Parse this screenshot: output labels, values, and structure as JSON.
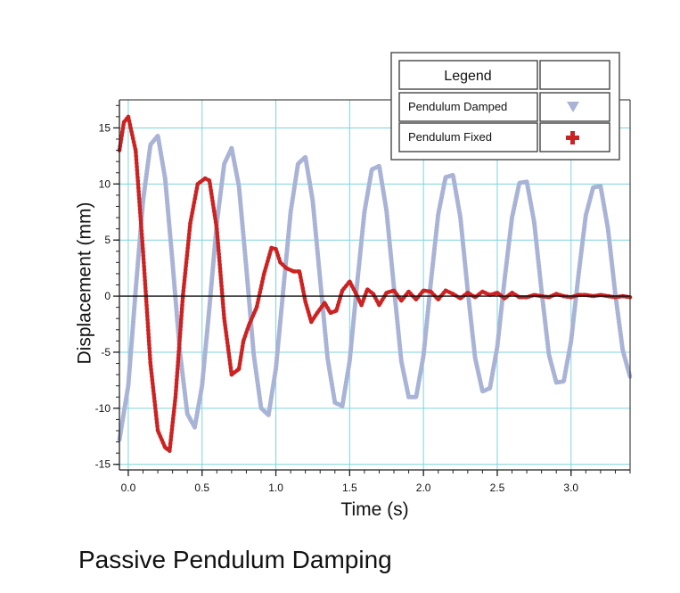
{
  "chart_data": {
    "type": "line",
    "title": "",
    "caption": "Passive Pendulum Damping",
    "xlabel": "Time (s)",
    "ylabel": "Displacement (mm)",
    "xlim": [
      -0.06,
      3.4
    ],
    "ylim": [
      -15.5,
      17.5
    ],
    "x_ticks": [
      0.0,
      0.5,
      1.0,
      1.5,
      2.0,
      2.5,
      3.0
    ],
    "x_tick_labels": [
      "0.0",
      "0.5",
      "1.0",
      "1.5",
      "2.0",
      "2.5",
      "3.0"
    ],
    "y_ticks": [
      -15,
      -10,
      -5,
      0,
      5,
      10,
      15
    ],
    "y_tick_labels": [
      "-15",
      "-10",
      "-5",
      "0",
      "5",
      "10",
      "15"
    ],
    "grid": true,
    "legend": {
      "title": "Legend",
      "placement": "top-right",
      "entries": [
        {
          "label": "Pendulum Damped",
          "marker": "triangle-down",
          "color": "#a9b3d6"
        },
        {
          "label": "Pendulum Fixed",
          "marker": "plus",
          "color": "#cc2222"
        }
      ]
    },
    "series": [
      {
        "name": "Pendulum Damped",
        "color": "#a9b3d6",
        "x": [
          -0.06,
          0.0,
          0.05,
          0.1,
          0.15,
          0.2,
          0.25,
          0.3,
          0.35,
          0.4,
          0.45,
          0.5,
          0.55,
          0.6,
          0.65,
          0.7,
          0.75,
          0.8,
          0.85,
          0.9,
          0.95,
          1.0,
          1.05,
          1.1,
          1.15,
          1.2,
          1.25,
          1.3,
          1.35,
          1.4,
          1.45,
          1.5,
          1.55,
          1.6,
          1.65,
          1.7,
          1.75,
          1.8,
          1.85,
          1.9,
          1.95,
          2.0,
          2.05,
          2.1,
          2.15,
          2.2,
          2.25,
          2.3,
          2.35,
          2.4,
          2.45,
          2.5,
          2.55,
          2.6,
          2.65,
          2.7,
          2.75,
          2.8,
          2.85,
          2.9,
          2.95,
          3.0,
          3.05,
          3.1,
          3.15,
          3.2,
          3.25,
          3.3,
          3.35,
          3.4
        ],
        "y": [
          -12.8,
          -8.0,
          0.5,
          8.5,
          13.5,
          14.3,
          10.5,
          3.0,
          -5.0,
          -10.5,
          -11.7,
          -8.0,
          -1.0,
          6.5,
          11.8,
          13.2,
          9.8,
          2.5,
          -5.2,
          -10.0,
          -10.6,
          -6.5,
          0.5,
          7.5,
          11.8,
          12.4,
          8.5,
          1.5,
          -5.5,
          -9.5,
          -9.8,
          -5.8,
          1.0,
          7.5,
          11.3,
          11.6,
          7.6,
          0.8,
          -5.8,
          -9.0,
          -9.0,
          -5.3,
          1.2,
          7.3,
          10.6,
          10.8,
          7.0,
          0.5,
          -5.5,
          -8.5,
          -8.2,
          -4.5,
          1.5,
          7.0,
          10.1,
          10.2,
          6.6,
          0.5,
          -5.2,
          -7.7,
          -7.6,
          -4.0,
          1.8,
          7.2,
          9.7,
          9.8,
          6.0,
          0.2,
          -4.8,
          -7.2
        ]
      },
      {
        "name": "Pendulum Fixed",
        "color": "#cc2222",
        "x": [
          -0.06,
          -0.03,
          0.0,
          0.05,
          0.1,
          0.15,
          0.2,
          0.25,
          0.28,
          0.32,
          0.37,
          0.42,
          0.47,
          0.52,
          0.55,
          0.6,
          0.65,
          0.7,
          0.75,
          0.78,
          0.82,
          0.87,
          0.92,
          0.97,
          1.0,
          1.03,
          1.07,
          1.12,
          1.16,
          1.2,
          1.24,
          1.28,
          1.33,
          1.37,
          1.41,
          1.45,
          1.5,
          1.54,
          1.58,
          1.62,
          1.66,
          1.7,
          1.75,
          1.8,
          1.85,
          1.9,
          1.95,
          2.0,
          2.05,
          2.1,
          2.15,
          2.2,
          2.25,
          2.3,
          2.35,
          2.4,
          2.45,
          2.5,
          2.55,
          2.6,
          2.65,
          2.7,
          2.75,
          2.8,
          2.85,
          2.9,
          2.95,
          3.0,
          3.05,
          3.1,
          3.15,
          3.2,
          3.25,
          3.3,
          3.35,
          3.4
        ],
        "y": [
          13.0,
          15.5,
          16.0,
          13.0,
          4.0,
          -6.0,
          -12.0,
          -13.5,
          -13.8,
          -9.0,
          0.0,
          6.5,
          10.0,
          10.5,
          10.3,
          6.0,
          -2.0,
          -7.0,
          -6.5,
          -4.0,
          -2.5,
          -1.0,
          2.0,
          4.3,
          4.2,
          3.0,
          2.5,
          2.2,
          2.2,
          -0.5,
          -2.3,
          -1.5,
          -0.6,
          -1.5,
          -1.3,
          0.5,
          1.3,
          0.3,
          -0.8,
          0.6,
          0.2,
          -0.8,
          0.3,
          0.5,
          -0.4,
          0.4,
          -0.3,
          0.5,
          0.4,
          -0.3,
          0.5,
          0.2,
          -0.2,
          0.3,
          -0.1,
          0.4,
          0.1,
          0.3,
          -0.2,
          0.3,
          -0.1,
          -0.1,
          0.1,
          0.0,
          -0.1,
          0.2,
          0.0,
          -0.1,
          0.1,
          0.1,
          0.0,
          0.1,
          0.0,
          -0.1,
          0.0,
          -0.1
        ]
      }
    ]
  }
}
